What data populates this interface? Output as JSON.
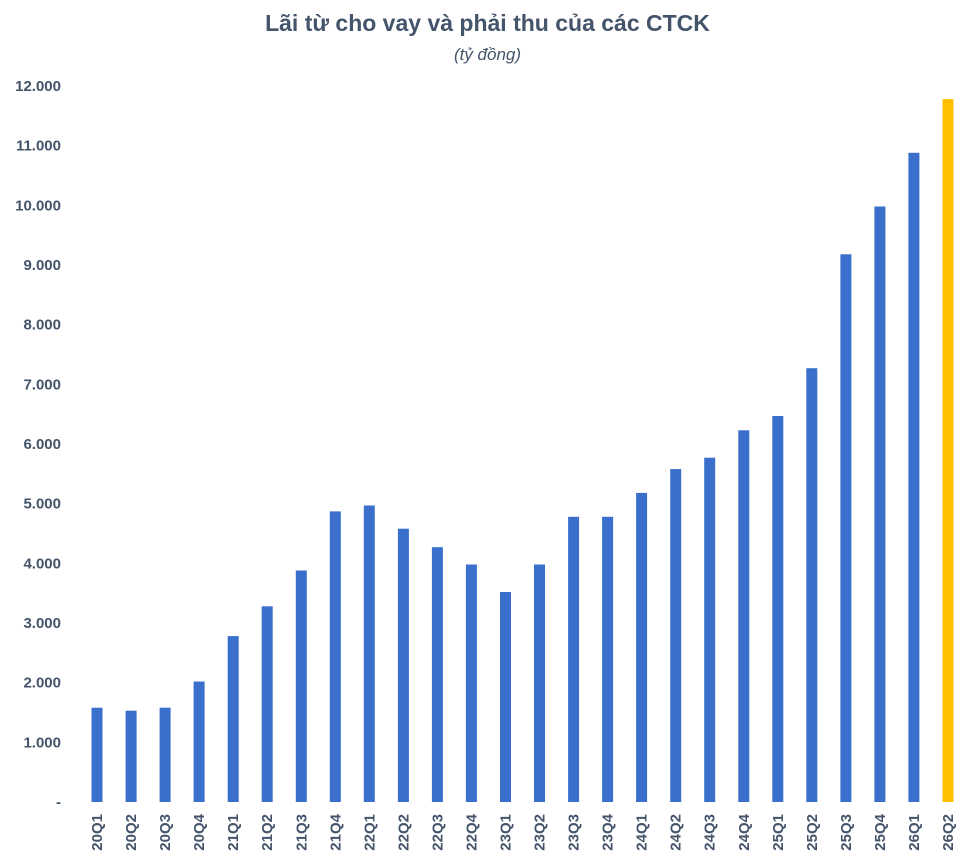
{
  "chart_data": {
    "type": "bar",
    "title": "Lãi từ cho vay và phải thu của các CTCK",
    "subtitle": "(tỷ đồng)",
    "xlabel": "",
    "ylabel": "",
    "ylim": [
      0,
      12000
    ],
    "yticks": [
      {
        "value": 0,
        "label": "-"
      },
      {
        "value": 1000,
        "label": "1.000"
      },
      {
        "value": 2000,
        "label": "2.000"
      },
      {
        "value": 3000,
        "label": "3.000"
      },
      {
        "value": 4000,
        "label": "4.000"
      },
      {
        "value": 5000,
        "label": "5.000"
      },
      {
        "value": 6000,
        "label": "6.000"
      },
      {
        "value": 7000,
        "label": "7.000"
      },
      {
        "value": 8000,
        "label": "8.000"
      },
      {
        "value": 9000,
        "label": "9.000"
      },
      {
        "value": 10000,
        "label": "10.000"
      },
      {
        "value": 11000,
        "label": "11.000"
      },
      {
        "value": 12000,
        "label": "12.000"
      }
    ],
    "grid": false,
    "categories": [
      "20Q1",
      "20Q2",
      "20Q3",
      "20Q4",
      "21Q1",
      "21Q2",
      "21Q3",
      "21Q4",
      "22Q1",
      "22Q2",
      "22Q3",
      "22Q4",
      "23Q1",
      "23Q2",
      "23Q3",
      "23Q4",
      "24Q1",
      "24Q2",
      "24Q3",
      "24Q4",
      "25Q1",
      "25Q2",
      "25Q3",
      "25Q4",
      "26Q1",
      "26Q2"
    ],
    "values": [
      1580,
      1530,
      1580,
      2020,
      2780,
      3280,
      3880,
      4870,
      4970,
      4580,
      4270,
      3980,
      3520,
      3980,
      4780,
      4780,
      5180,
      5580,
      5770,
      6230,
      6470,
      7270,
      9180,
      9980,
      10880,
      11780
    ],
    "colors": {
      "default": "#3a6fcc",
      "highlight": "#ffc000",
      "highlight_index": 25,
      "text": "#44546a"
    }
  }
}
